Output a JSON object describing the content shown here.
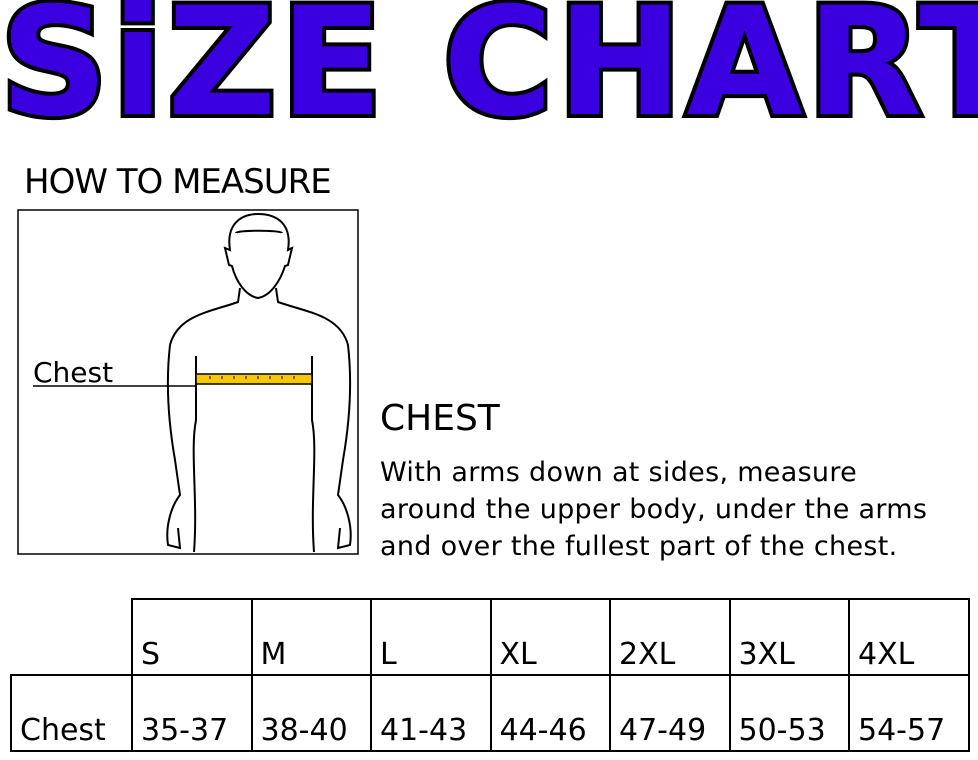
{
  "title": "SiZE CHART",
  "title_color": "#3a00e0",
  "how_to_measure": {
    "heading": "HOW TO MEASURE",
    "figure_label": "Chest",
    "tape_color": "#f5c800"
  },
  "instructions": {
    "heading": "CHEST",
    "lines": [
      "With arms down at sides, measure",
      "around the upper body, under the arms",
      "and over the fullest part of the chest."
    ]
  },
  "size_table": {
    "sizes": [
      "S",
      "M",
      "L",
      "XL",
      "2XL",
      "3XL",
      "4XL"
    ],
    "rows": [
      {
        "label": "Chest",
        "values": [
          "35-37",
          "38-40",
          "41-43",
          "44-46",
          "47-49",
          "50-53",
          "54-57"
        ]
      }
    ]
  }
}
